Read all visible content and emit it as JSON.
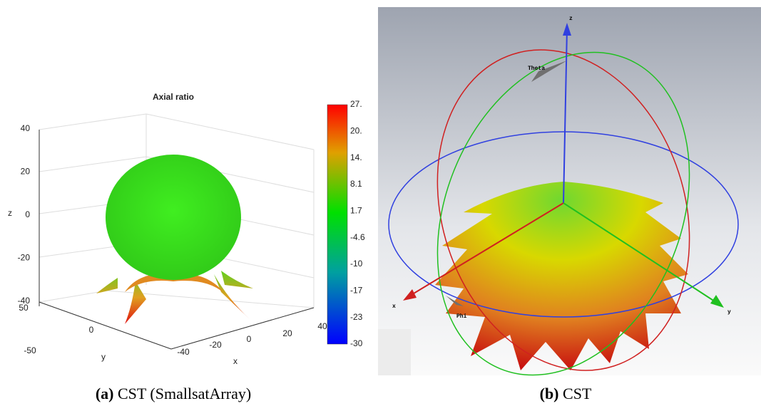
{
  "panels": [
    {
      "title": "Axial ratio",
      "z_label": "z",
      "y_label": "y",
      "x_label": "x",
      "z_ticks": [
        "40",
        "20",
        "0",
        "-20",
        "-40"
      ],
      "y_ticks": [
        "50",
        "0",
        "-50"
      ],
      "x_ticks": [
        "-40",
        "-20",
        "0",
        "20",
        "40"
      ],
      "colorbar_ticks": [
        "27.",
        "20.",
        "14.",
        "8.1",
        "1.7",
        "-4.6",
        "-10",
        "-17",
        "-23",
        "-30"
      ],
      "caption": {
        "label": "(a)",
        "text": "CST (SmallsatArray)"
      }
    },
    {
      "axis_labels": {
        "z": "z",
        "theta": "Theta",
        "x": "x",
        "phi": "Phi",
        "y": "y"
      },
      "caption": {
        "label": "(b)",
        "text": "CST"
      }
    }
  ]
}
